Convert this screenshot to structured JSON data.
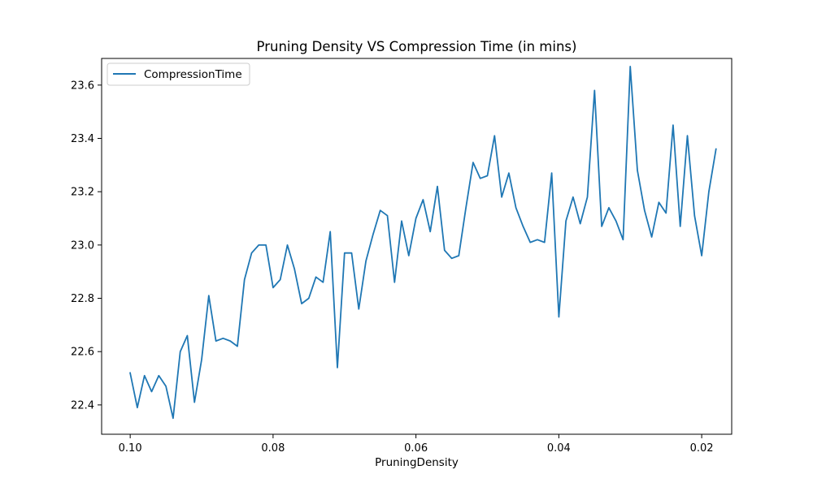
{
  "chart_data": {
    "type": "line",
    "title": "Pruning Density VS Compression Time (in mins)",
    "xlabel": "PruningDensity",
    "ylabel": "",
    "xlim": [
      0.104,
      0.0158
    ],
    "ylim": [
      22.29,
      23.7
    ],
    "x_inverted": true,
    "x_ticks": [
      0.1,
      0.08,
      0.06,
      0.04,
      0.02
    ],
    "x_tick_labels": [
      "0.10",
      "0.08",
      "0.06",
      "0.04",
      "0.02"
    ],
    "y_ticks": [
      22.4,
      22.6,
      22.8,
      23.0,
      23.2,
      23.4,
      23.6
    ],
    "y_tick_labels": [
      "22.4",
      "22.6",
      "22.8",
      "23.0",
      "23.2",
      "23.4",
      "23.6"
    ],
    "grid": false,
    "legend_position": "upper left",
    "series": [
      {
        "name": "CompressionTime",
        "color": "#1f77b4",
        "x": [
          0.1,
          0.099,
          0.098,
          0.097,
          0.096,
          0.095,
          0.094,
          0.093,
          0.092,
          0.091,
          0.09,
          0.089,
          0.088,
          0.087,
          0.086,
          0.085,
          0.084,
          0.083,
          0.082,
          0.081,
          0.08,
          0.079,
          0.078,
          0.077,
          0.076,
          0.075,
          0.074,
          0.073,
          0.072,
          0.071,
          0.07,
          0.069,
          0.068,
          0.067,
          0.066,
          0.065,
          0.064,
          0.063,
          0.062,
          0.061,
          0.06,
          0.059,
          0.058,
          0.057,
          0.056,
          0.055,
          0.054,
          0.053,
          0.052,
          0.051,
          0.05,
          0.049,
          0.048,
          0.047,
          0.046,
          0.045,
          0.044,
          0.043,
          0.042,
          0.041,
          0.04,
          0.039,
          0.038,
          0.037,
          0.036,
          0.035,
          0.034,
          0.033,
          0.032,
          0.031,
          0.03,
          0.029,
          0.028,
          0.027,
          0.026,
          0.025,
          0.024,
          0.023,
          0.022,
          0.021,
          0.02,
          0.019,
          0.018
        ],
        "y": [
          22.52,
          22.39,
          22.51,
          22.45,
          22.51,
          22.47,
          22.35,
          22.6,
          22.66,
          22.41,
          22.57,
          22.81,
          22.64,
          22.65,
          22.64,
          22.62,
          22.87,
          22.97,
          23.0,
          23.0,
          22.84,
          22.87,
          23.0,
          22.91,
          22.78,
          22.8,
          22.88,
          22.86,
          23.05,
          22.54,
          22.97,
          22.97,
          22.76,
          22.94,
          23.04,
          23.13,
          23.11,
          22.86,
          23.09,
          22.96,
          23.1,
          23.17,
          23.05,
          23.22,
          22.98,
          22.95,
          22.96,
          23.14,
          23.31,
          23.25,
          23.26,
          23.41,
          23.18,
          23.27,
          23.14,
          23.07,
          23.01,
          23.02,
          23.01,
          23.27,
          22.73,
          23.09,
          23.18,
          23.08,
          23.18,
          23.58,
          23.07,
          23.14,
          23.09,
          23.02,
          23.67,
          23.28,
          23.13,
          23.03,
          23.16,
          23.12,
          23.45,
          23.07,
          23.41,
          23.11,
          22.96,
          23.2,
          23.36
        ]
      }
    ]
  }
}
